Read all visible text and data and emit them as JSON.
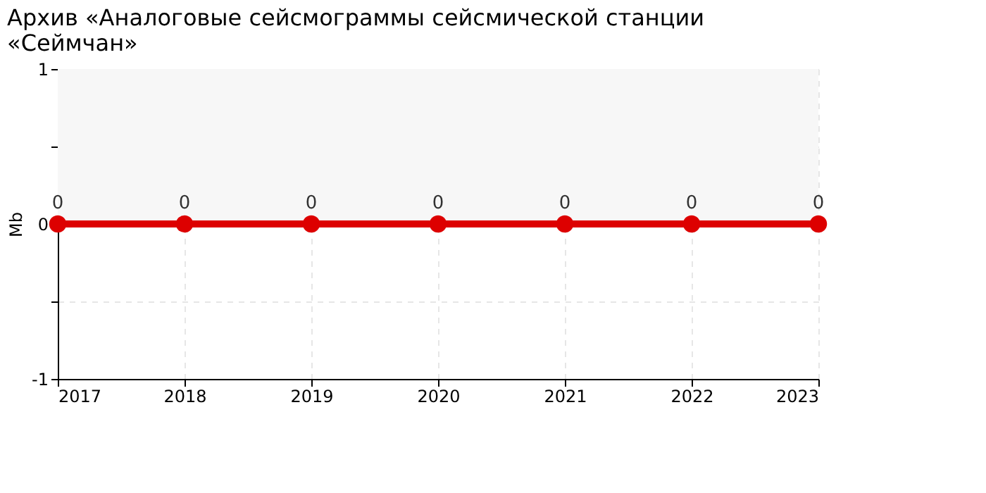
{
  "chart_data": {
    "type": "line",
    "title": "Архив «Аналоговые сейсмограммы сейсмической станции «Сеймчан»",
    "ylabel": "Mb",
    "x": [
      2017,
      2018,
      2019,
      2020,
      2021,
      2022,
      2023
    ],
    "series": [
      {
        "color": "#dd0000",
        "values": [
          0,
          0,
          0,
          0,
          0,
          0,
          0
        ]
      }
    ],
    "xlim": [
      2017,
      2023
    ],
    "xticks": [
      2017,
      2018,
      2019,
      2020,
      2021,
      2022,
      2023
    ],
    "ylim": [
      -1,
      1
    ],
    "yticks": [
      -1,
      {
        "value": -0.5,
        "label": null
      },
      0,
      {
        "value": 0.5,
        "label": null
      },
      1
    ],
    "bands": [
      {
        "axis": "y",
        "from": 0,
        "to": 1,
        "color": "#f7f7f7"
      }
    ],
    "grid": true,
    "marker": "circle",
    "line_style": "solid",
    "data_labels": true
  }
}
